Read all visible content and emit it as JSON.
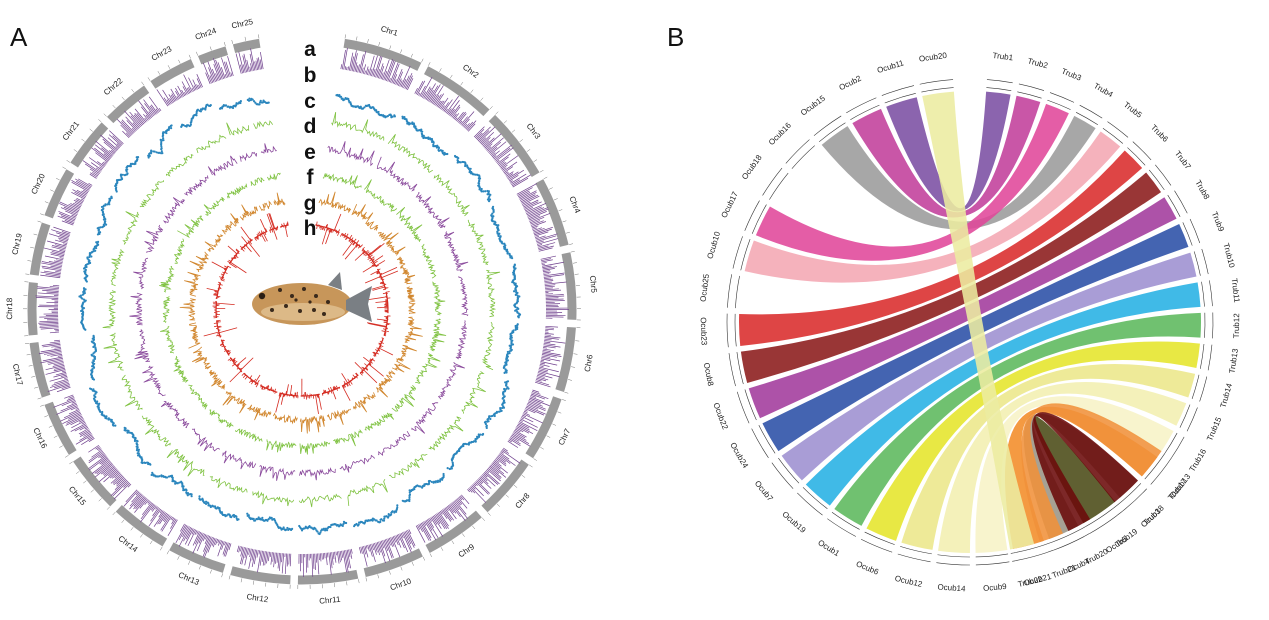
{
  "panels": {
    "a": {
      "letter": "A"
    },
    "b": {
      "letter": "B"
    }
  },
  "circos": {
    "chromosomes": [
      {
        "name": "Chr1",
        "size": 33
      },
      {
        "name": "Chr2",
        "size": 31
      },
      {
        "name": "Chr3",
        "size": 30
      },
      {
        "name": "Chr4",
        "size": 29
      },
      {
        "name": "Chr5",
        "size": 28
      },
      {
        "name": "Chr6",
        "size": 27
      },
      {
        "name": "Chr7",
        "size": 27
      },
      {
        "name": "Chr8",
        "size": 26
      },
      {
        "name": "Chr9",
        "size": 26
      },
      {
        "name": "Chr10",
        "size": 25
      },
      {
        "name": "Chr11",
        "size": 25
      },
      {
        "name": "Chr12",
        "size": 25
      },
      {
        "name": "Chr13",
        "size": 24
      },
      {
        "name": "Chr14",
        "size": 24
      },
      {
        "name": "Chr15",
        "size": 24
      },
      {
        "name": "Chr16",
        "size": 23
      },
      {
        "name": "Chr17",
        "size": 23
      },
      {
        "name": "Chr18",
        "size": 22
      },
      {
        "name": "Chr19",
        "size": 22
      },
      {
        "name": "Chr20",
        "size": 21
      },
      {
        "name": "Chr21",
        "size": 21
      },
      {
        "name": "Chr22",
        "size": 20
      },
      {
        "name": "Chr23",
        "size": 19
      },
      {
        "name": "Chr24",
        "size": 12
      },
      {
        "name": "Chr25",
        "size": 11
      }
    ],
    "track_letters": [
      "a",
      "b",
      "c",
      "d",
      "e",
      "f",
      "g",
      "h"
    ],
    "track_colors": [
      "#9a9a9a",
      "#6e3f8c",
      "#2b86bd",
      "#7fc241",
      "#8a4a9c",
      "#7fc241",
      "#d1862d",
      "#d42a20"
    ]
  },
  "synteny": {
    "left": [
      "Ocub20",
      "Ocub11",
      "Ocub2",
      "Ocub15",
      "Ocub16",
      "Ocub18",
      "Ocub17",
      "Ocub10",
      "Ocub25",
      "Ocub23",
      "Ocub8",
      "Ocub22",
      "Ocub24",
      "Ocub7",
      "Ocub19",
      "Ocub1",
      "Ocub6",
      "Ocub12",
      "Ocub14",
      "Ocub9",
      "Ocub21",
      "Ocub4",
      "Ocub5",
      "Ocub3",
      "Ocub13"
    ],
    "right": [
      "Trub1",
      "Trub2",
      "Trub3",
      "Trub4",
      "Trub5",
      "Trub6",
      "Trub7",
      "Trub8",
      "Trub9",
      "Trub10",
      "Trub11",
      "Trub12",
      "Trub13",
      "Trub14",
      "Trub15",
      "Trub16",
      "Trub17",
      "Trub18",
      "Trub19",
      "Trub20",
      "Trub21",
      "Trub22"
    ],
    "ribbon_colors": [
      "#7b4ea3",
      "#c23f9b",
      "#9b9b9b",
      "#e0479a",
      "#f4a7b3",
      "#d92b2b",
      "#8b1a1a",
      "#a23a9c",
      "#2a4fa6",
      "#9d8fd0",
      "#25b1e4",
      "#5cb85c",
      "#e5e52a",
      "#ece78a",
      "#f3efb0",
      "#f7f2c6",
      "#f28c28",
      "#9a9485",
      "#4a4a16",
      "#6b0a0a",
      "#f0913a",
      "#ececa0"
    ]
  }
}
